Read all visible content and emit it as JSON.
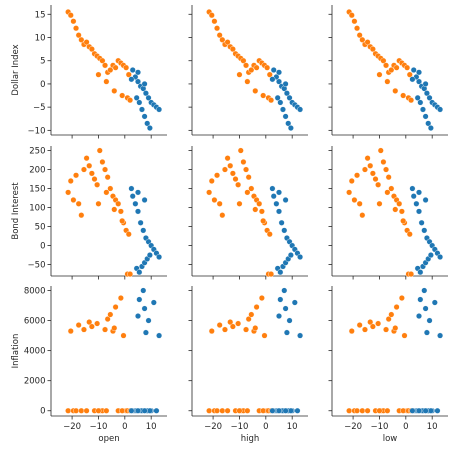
{
  "chart_data": {
    "type": "scatter",
    "layout": "pairplot grid (3 rows × 3 columns), shared axes",
    "x_variables": [
      "open",
      "high",
      "low"
    ],
    "y_variables": [
      "Dollar Index",
      "Bond Interest",
      "Inflation"
    ],
    "xlim": [
      -28,
      16
    ],
    "xticks": [
      -20,
      -10,
      0,
      10
    ],
    "xtick_labels": [
      "−20",
      "−10",
      "0",
      "10"
    ],
    "rows": [
      {
        "ylabel": "Dollar Index",
        "ylim": [
          -11,
          17
        ],
        "yticks": [
          -10,
          -5,
          0,
          5,
          10,
          15
        ],
        "ytick_labels": [
          "−10",
          "−5",
          "0",
          "5",
          "10",
          "15"
        ]
      },
      {
        "ylabel": "Bond Interest",
        "ylim": [
          -80,
          262
        ],
        "yticks": [
          -50,
          0,
          50,
          100,
          150,
          200,
          250
        ],
        "ytick_labels": [
          "−50",
          "0",
          "50",
          "100",
          "150",
          "200",
          "250"
        ]
      },
      {
        "ylabel": "Inflation",
        "ylim": [
          -350,
          8300
        ],
        "yticks": [
          0,
          2000,
          4000,
          6000,
          8000
        ],
        "ytick_labels": [
          "0",
          "2000",
          "4000",
          "6000",
          "8000"
        ]
      }
    ],
    "hue_colors": {
      "group_a": "#ff7f0e",
      "group_b": "#1f77b4"
    },
    "grid": false,
    "legend": "none shown",
    "series": [
      {
        "color": "#ff7f0e",
        "points": [
          {
            "x": -21.5,
            "y_dollar": 15.5,
            "y_bond": 140,
            "y_infl": 0
          },
          {
            "x": -20.5,
            "y_dollar": 14.8,
            "y_bond": 170,
            "y_infl": 5300
          },
          {
            "x": -19.5,
            "y_dollar": 13.5,
            "y_bond": 120,
            "y_infl": 0
          },
          {
            "x": -18.5,
            "y_dollar": 12.0,
            "y_bond": 185,
            "y_infl": 0
          },
          {
            "x": -17.5,
            "y_dollar": 10.5,
            "y_bond": 110,
            "y_infl": 5700
          },
          {
            "x": -16.5,
            "y_dollar": 9.5,
            "y_bond": 80,
            "y_infl": 0
          },
          {
            "x": -15.5,
            "y_dollar": 8.5,
            "y_bond": 200,
            "y_infl": 5400
          },
          {
            "x": -14.5,
            "y_dollar": 9.0,
            "y_bond": 230,
            "y_infl": 0
          },
          {
            "x": -13.5,
            "y_dollar": 8.0,
            "y_bond": 210,
            "y_infl": 5900
          },
          {
            "x": -12.5,
            "y_dollar": 7.5,
            "y_bond": 190,
            "y_infl": 5600
          },
          {
            "x": -11.5,
            "y_dollar": 6.5,
            "y_bond": 175,
            "y_infl": 0
          },
          {
            "x": -10.5,
            "y_dollar": 6.0,
            "y_bond": 160,
            "y_infl": 5800
          },
          {
            "x": -9.5,
            "y_dollar": 5.5,
            "y_bond": 250,
            "y_infl": 0
          },
          {
            "x": -8.5,
            "y_dollar": 5.0,
            "y_bond": 220,
            "y_infl": 0
          },
          {
            "x": -7.5,
            "y_dollar": 4.0,
            "y_bond": 200,
            "y_infl": 5400
          },
          {
            "x": -6.5,
            "y_dollar": 2.5,
            "y_bond": 180,
            "y_infl": 6100
          },
          {
            "x": -5.5,
            "y_dollar": 3.0,
            "y_bond": 150,
            "y_infl": 6400
          },
          {
            "x": -4.5,
            "y_dollar": 4.0,
            "y_bond": 130,
            "y_infl": 5300
          },
          {
            "x": -3.5,
            "y_dollar": 3.5,
            "y_bond": 120,
            "y_infl": 6900
          },
          {
            "x": -2.5,
            "y_dollar": 5.0,
            "y_bond": 110,
            "y_infl": 0
          },
          {
            "x": -1.5,
            "y_dollar": 4.5,
            "y_bond": 90,
            "y_infl": 7500
          },
          {
            "x": -0.5,
            "y_dollar": 4.0,
            "y_bond": 60,
            "y_infl": 5000
          },
          {
            "x": 0.5,
            "y_dollar": 3.5,
            "y_bond": 40,
            "y_infl": 0
          },
          {
            "x": 1.5,
            "y_dollar": 2.0,
            "y_bond": 30,
            "y_infl": 0
          },
          {
            "x": -10.0,
            "y_dollar": 2.0,
            "y_bond": 110,
            "y_infl": 0
          },
          {
            "x": -7.0,
            "y_dollar": 0.5,
            "y_bond": 140,
            "y_infl": 0
          },
          {
            "x": -4.0,
            "y_dollar": -1.5,
            "y_bond": 95,
            "y_infl": 5500
          },
          {
            "x": -1.0,
            "y_dollar": -2.5,
            "y_bond": 65,
            "y_infl": 0
          },
          {
            "x": 1.0,
            "y_dollar": -3.0,
            "y_bond": -75,
            "y_infl": 0
          },
          {
            "x": 2.0,
            "y_dollar": -3.5,
            "y_bond": -75,
            "y_infl": 0
          }
        ]
      },
      {
        "color": "#1f77b4",
        "points": [
          {
            "x": 3.0,
            "y_dollar": 3.0,
            "y_bond": 130,
            "y_infl": 0
          },
          {
            "x": 4.0,
            "y_dollar": 1.5,
            "y_bond": 110,
            "y_infl": 0
          },
          {
            "x": 5.0,
            "y_dollar": 0.5,
            "y_bond": 90,
            "y_infl": 6300
          },
          {
            "x": 6.0,
            "y_dollar": -0.5,
            "y_bond": 60,
            "y_infl": 0
          },
          {
            "x": 7.0,
            "y_dollar": -1.0,
            "y_bond": 40,
            "y_infl": 8000
          },
          {
            "x": 8.0,
            "y_dollar": -2.0,
            "y_bond": 20,
            "y_infl": 5200
          },
          {
            "x": 9.0,
            "y_dollar": -3.0,
            "y_bond": 10,
            "y_infl": 6000
          },
          {
            "x": 10.0,
            "y_dollar": -4.0,
            "y_bond": 0,
            "y_infl": 0
          },
          {
            "x": 11.0,
            "y_dollar": -4.5,
            "y_bond": -10,
            "y_infl": 7200
          },
          {
            "x": 12.0,
            "y_dollar": -5.0,
            "y_bond": -20,
            "y_infl": 0
          },
          {
            "x": 13.0,
            "y_dollar": -5.5,
            "y_bond": -30,
            "y_infl": 5000
          },
          {
            "x": 4.5,
            "y_dollar": -3.0,
            "y_bond": -60,
            "y_infl": 0
          },
          {
            "x": 5.5,
            "y_dollar": -4.0,
            "y_bond": -70,
            "y_infl": 7400
          },
          {
            "x": 6.5,
            "y_dollar": -5.5,
            "y_bond": -55,
            "y_infl": 0
          },
          {
            "x": 7.5,
            "y_dollar": -7.0,
            "y_bond": -45,
            "y_infl": 6800
          },
          {
            "x": 8.5,
            "y_dollar": -8.5,
            "y_bond": -35,
            "y_infl": 0
          },
          {
            "x": 9.5,
            "y_dollar": -9.5,
            "y_bond": -25,
            "y_infl": 0
          },
          {
            "x": 2.5,
            "y_dollar": 1.0,
            "y_bond": 150,
            "y_infl": 0
          },
          {
            "x": 5.0,
            "y_dollar": 2.5,
            "y_bond": 140,
            "y_infl": 0
          },
          {
            "x": 7.5,
            "y_dollar": 0.0,
            "y_bond": 120,
            "y_infl": 0
          }
        ]
      }
    ]
  }
}
